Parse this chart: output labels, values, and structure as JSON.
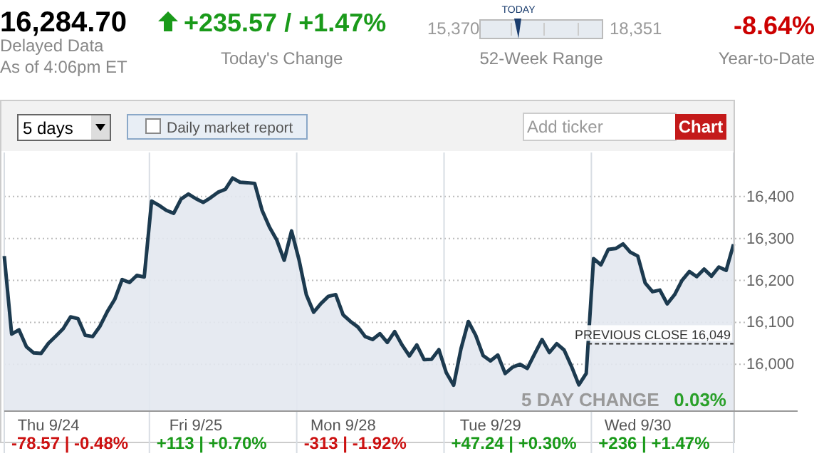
{
  "chart_data": {
    "type": "area",
    "categories": [
      null,
      null,
      null,
      null,
      null,
      null,
      "Thu 9/24",
      null,
      null,
      null,
      null,
      null,
      null,
      null,
      null,
      null,
      null,
      null,
      null,
      null,
      null,
      null,
      null,
      null,
      null,
      null,
      "Fri 9/25",
      null,
      null,
      null,
      null,
      null,
      null,
      null,
      null,
      null,
      null,
      null,
      null,
      null,
      null,
      null,
      null,
      null,
      null,
      null,
      "Mon 9/28",
      null,
      null,
      null,
      null,
      null,
      null,
      null,
      null,
      null,
      null,
      null,
      null,
      null,
      null,
      null,
      null,
      null,
      null,
      null,
      "Tue 9/29",
      null,
      null,
      null,
      null,
      null,
      null,
      null,
      null,
      null,
      null,
      null,
      null,
      null,
      null,
      null,
      null,
      null,
      null,
      null,
      "Wed 9/30",
      null,
      null,
      null,
      null,
      null,
      null,
      null,
      null,
      null,
      null,
      null,
      null,
      null
    ],
    "series": [
      {
        "color": "#1c3a4f",
        "values": [
          16258,
          16072,
          16082,
          16042,
          16027,
          16026,
          16050,
          16067,
          16085,
          16113,
          16109,
          16069,
          16066,
          16091,
          16126,
          16155,
          16202,
          16195,
          16212,
          16208,
          16389,
          16379,
          16367,
          16360,
          16394,
          16406,
          16395,
          16386,
          16397,
          16410,
          16417,
          16444,
          16434,
          16433,
          16431,
          16367,
          16327,
          16296,
          16248,
          16318,
          16250,
          16166,
          16124,
          16145,
          16162,
          16166,
          16118,
          16102,
          16089,
          16066,
          16059,
          16073,
          16052,
          16078,
          16046,
          16020,
          16046,
          16011,
          16012,
          16035,
          15980,
          15950,
          16037,
          16102,
          16069,
          16021,
          16008,
          16022,
          15978,
          15993,
          16000,
          15990,
          16025,
          16059,
          16028,
          16049,
          16034,
          15995,
          15951,
          15978,
          16252,
          16237,
          16274,
          16276,
          16287,
          16267,
          16258,
          16194,
          16173,
          16177,
          16144,
          16166,
          16200,
          16221,
          16209,
          16227,
          16210,
          16232,
          16224,
          16286
        ]
      }
    ],
    "ylim": [
      15890,
      16505
    ],
    "yticks": [
      {
        "value": 16000,
        "label": "16,000"
      },
      {
        "value": 16100,
        "label": "16,100"
      },
      {
        "value": 16200,
        "label": "16,200"
      },
      {
        "value": 16300,
        "label": "16,300"
      },
      {
        "value": 16400,
        "label": "16,400"
      }
    ],
    "grid": "y",
    "ref_lines": [
      {
        "axis": "y",
        "value": 16049,
        "label": "PREVIOUS CLOSE 16,049",
        "line_style": "dashed"
      }
    ],
    "annotations": [
      "16,284.70",
      "Delayed Data",
      "As of 4:06pm ET",
      "+235.57 / +1.47%",
      "Today's Change",
      "15,370",
      "TODAY",
      "18,351",
      "52-Week Range",
      "-8.64%",
      "Year-to-Date",
      "5 days",
      "Daily market report",
      "Add ticker",
      "Chart",
      "5 DAY CHANGE",
      "0.03%",
      "-78.57 | -0.48%",
      "+113 | +0.70%",
      "-313 | -1.92%",
      "+47.24 | +0.30%",
      "+236 | +1.47%"
    ]
  }
}
